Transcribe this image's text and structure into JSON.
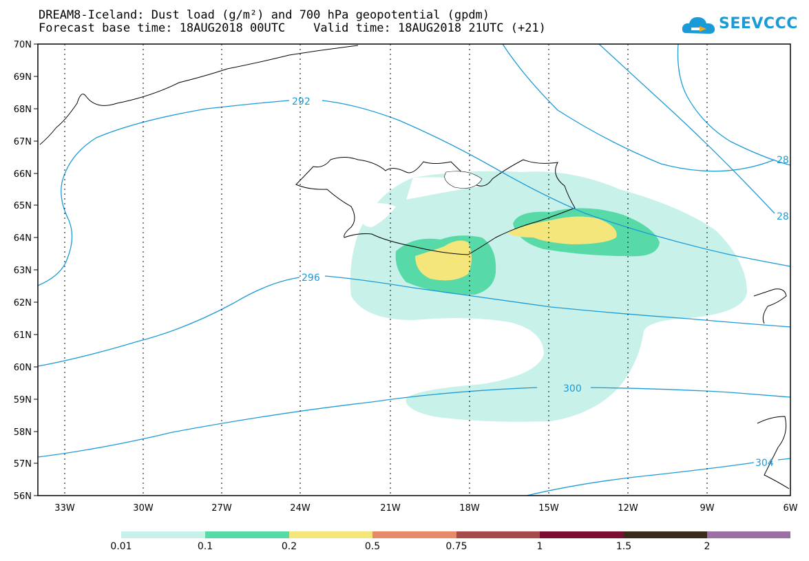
{
  "title_line1": "DREAM8-Iceland: Dust load (g/m²) and 700 hPa geopotential (gpdm)",
  "title_line2": "Forecast base time: 18AUG2018 00UTC    Valid time: 18AUG2018 21UTC (+21)",
  "logo_text": "SEEVCCC",
  "lat_labels": [
    "70N",
    "69N",
    "68N",
    "67N",
    "66N",
    "65N",
    "64N",
    "63N",
    "62N",
    "61N",
    "60N",
    "59N",
    "58N",
    "57N",
    "56N"
  ],
  "lon_labels": [
    "33W",
    "30W",
    "27W",
    "24W",
    "21W",
    "18W",
    "15W",
    "12W",
    "9W",
    "6W"
  ],
  "contour_labels": [
    "292",
    "296",
    "300",
    "304",
    "28",
    "28"
  ],
  "colorbar": {
    "labels": [
      "0.01",
      "0.1",
      "0.2",
      "0.5",
      "0.75",
      "1",
      "1.5",
      "2"
    ],
    "colors": [
      "#c8f1ea",
      "#58d9a8",
      "#f4e67a",
      "#e8896a",
      "#a64b4b",
      "#7a0e33",
      "#3b2a1a",
      "#9b6fa3"
    ]
  },
  "colors": {
    "contour": "#1a9ad6",
    "dust_low": "#c8f1ea",
    "dust_mid": "#58d9a8",
    "dust_high": "#f4e67a"
  }
}
